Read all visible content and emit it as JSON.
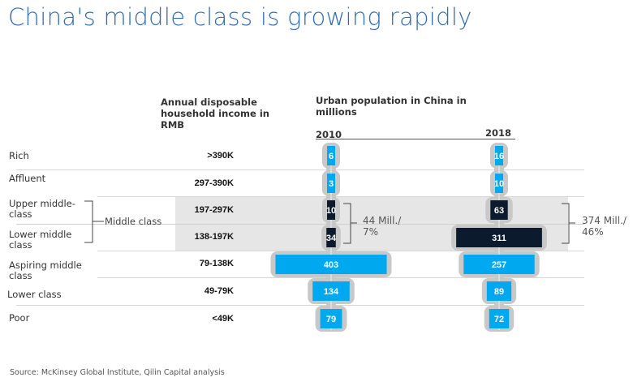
{
  "title": "China's middle class is growing rapidly",
  "source": "Source: McKinsey Global Institute, Qilin Capital analysis",
  "chart_data": {
    "type": "bar",
    "orientation": "horizontal-centered",
    "income_header": "Annual disposable household income in RMB",
    "population_header": "Urban population in China in millions",
    "categories": [
      "Rich",
      "Affluent",
      "Upper middle-class",
      "Lower middle class",
      "Aspiring middle class",
      "Lower class",
      "Poor"
    ],
    "income_ranges": [
      ">390K",
      "297-390K",
      "197-297K",
      "138-197K",
      "79-138K",
      "49-79K",
      "<49K"
    ],
    "group_label": "Middle class",
    "series": [
      {
        "name": "2010",
        "values": [
          6,
          3,
          10,
          34,
          403,
          134,
          79
        ]
      },
      {
        "name": "2018",
        "values": [
          16,
          10,
          63,
          311,
          257,
          89,
          72
        ]
      }
    ],
    "annotations": [
      {
        "series": "2010",
        "text_line1": "44 Mill./",
        "text_line2": "7%"
      },
      {
        "series": "2018",
        "text_line1": "374 Mill./",
        "text_line2": "46%"
      }
    ],
    "colors": {
      "default": "#00a8f0",
      "middle_class": "#0b1a2c",
      "shadow": "#c8c8c8",
      "band": "#e6e6e6",
      "title": "#2f6db3"
    }
  }
}
